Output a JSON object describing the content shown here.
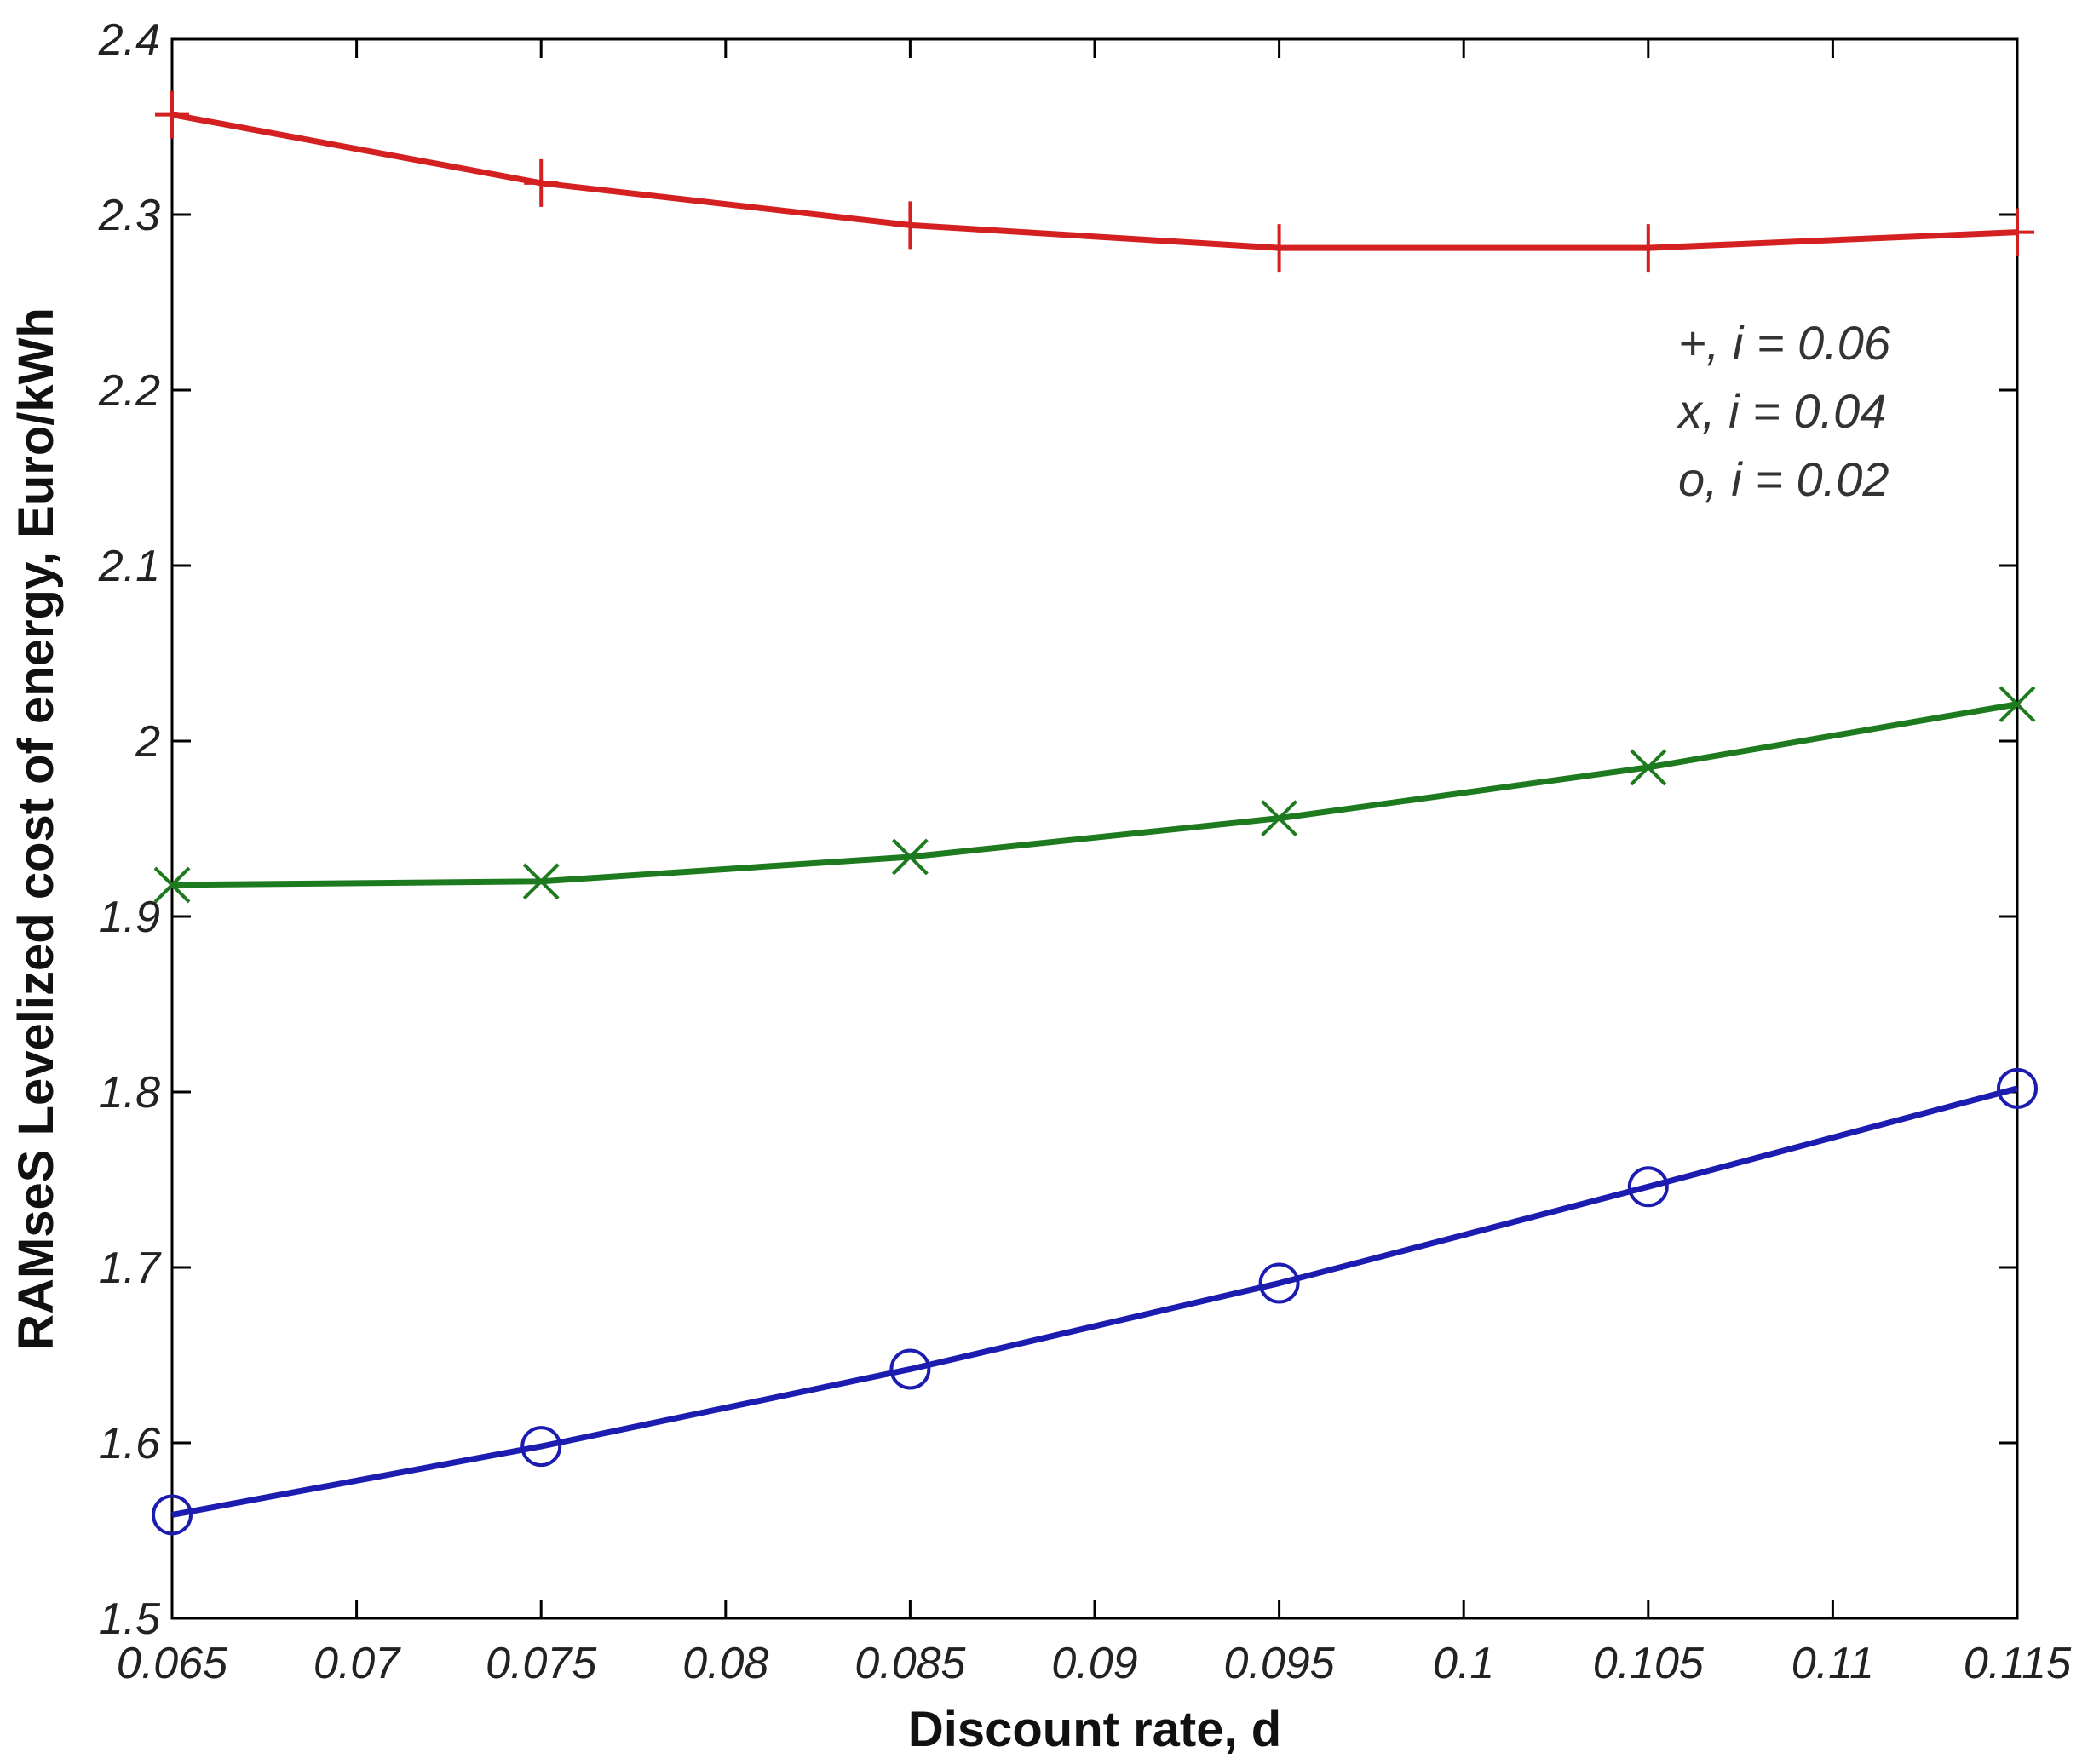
{
  "chart_data": {
    "type": "line",
    "title": "",
    "xlabel": "Discount rate, d",
    "ylabel": "RAMseS Levelized cost of energy, Euro/kWh",
    "xlim": [
      0.065,
      0.115
    ],
    "ylim": [
      1.5,
      2.4
    ],
    "xticks": [
      0.065,
      0.07,
      0.075,
      0.08,
      0.085,
      0.09,
      0.095,
      0.1,
      0.105,
      0.11,
      0.115
    ],
    "xtick_labels": [
      "0.065",
      "0.07",
      "0.075",
      "0.08",
      "0.085",
      "0.09",
      "0.095",
      "0.1",
      "0.105",
      "0.11",
      "0.115"
    ],
    "yticks": [
      1.5,
      1.6,
      1.7,
      1.8,
      1.9,
      2.0,
      2.1,
      2.2,
      2.3,
      2.4
    ],
    "ytick_labels": [
      "1.5",
      "1.6",
      "1.7",
      "1.8",
      "1.9",
      "2",
      "2.1",
      "2.2",
      "2.3",
      "2.4"
    ],
    "grid": false,
    "x": [
      0.065,
      0.075,
      0.085,
      0.095,
      0.105,
      0.115
    ],
    "series": [
      {
        "marker": "plus",
        "color": "#d42020",
        "values": [
          2.357,
          2.318,
          2.294,
          2.281,
          2.281,
          2.29
        ]
      },
      {
        "marker": "x",
        "color": "#1e7a1e",
        "values": [
          1.918,
          1.92,
          1.934,
          1.956,
          1.985,
          2.021
        ]
      },
      {
        "marker": "circle",
        "color": "#1c1cb0",
        "values": [
          1.559,
          1.598,
          1.642,
          1.691,
          1.746,
          1.802
        ]
      }
    ],
    "legend": {
      "placement": "top-right",
      "lines": [
        "+, i = 0.06",
        "x, i = 0.04",
        "o, i = 0.02"
      ]
    }
  }
}
